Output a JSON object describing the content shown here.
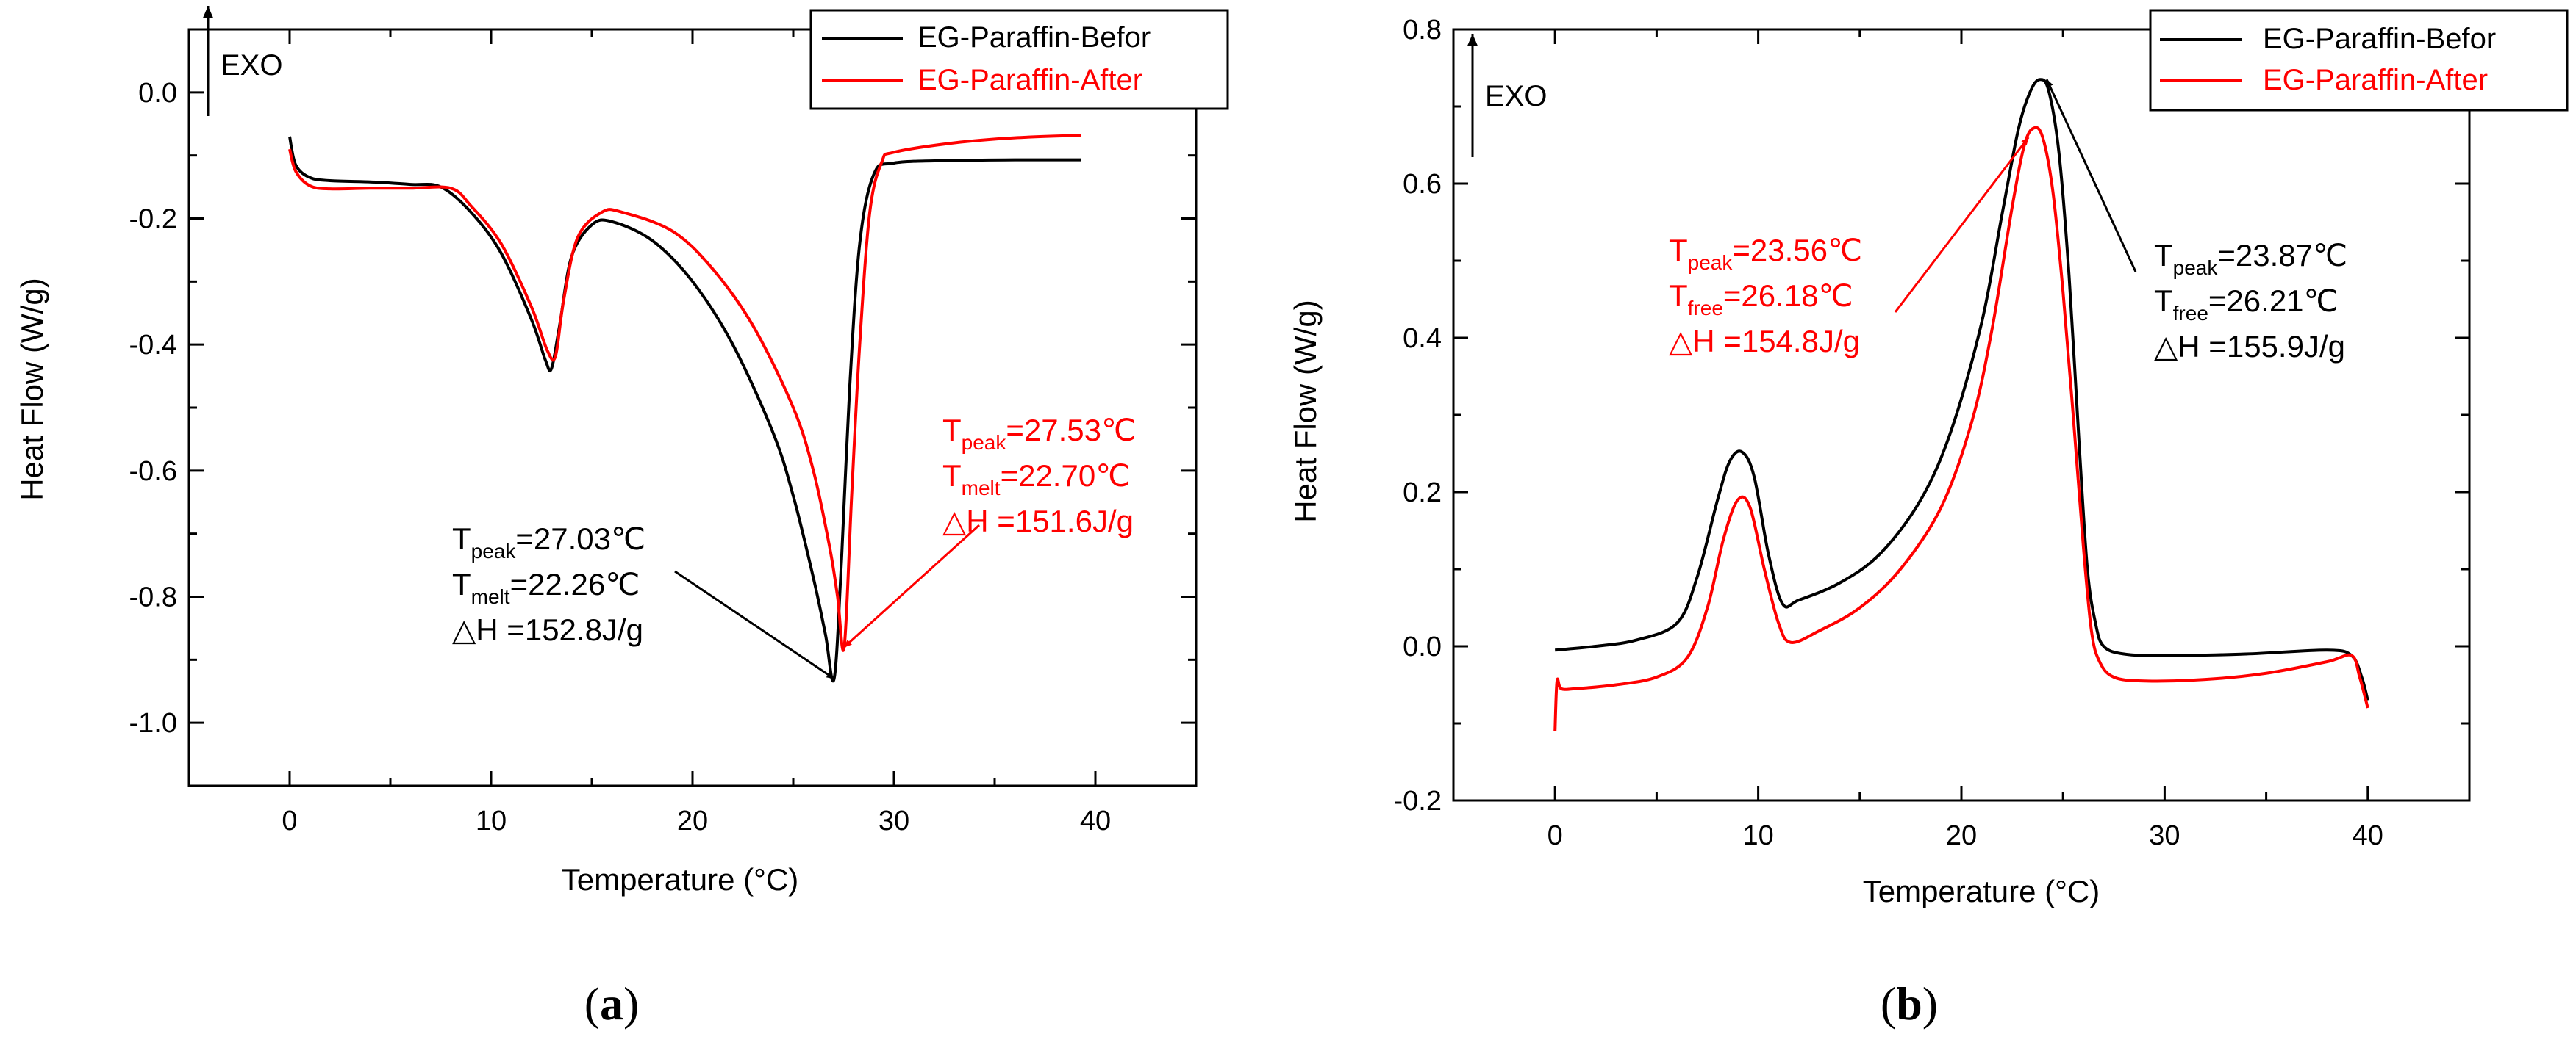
{
  "colors": {
    "before": "#000000",
    "after": "#ff0000",
    "axis": "#000000",
    "background": "#ffffff"
  },
  "chart_data": [
    {
      "type": "line",
      "panel": "a",
      "caption_paren_open": "(",
      "caption_letter": "a",
      "caption_paren_close": ")",
      "xlabel": "Temperature (°C)",
      "ylabel": "Heat Flow (W/g)",
      "xlim": [
        -5,
        45
      ],
      "ylim": [
        -1.1,
        0.1
      ],
      "xticks": [
        0,
        10,
        20,
        30,
        40
      ],
      "xtick_labels": [
        "0",
        "10",
        "20",
        "30",
        "40"
      ],
      "yticks": [
        -1.0,
        -0.8,
        -0.6,
        -0.4,
        -0.2,
        0.0
      ],
      "ytick_labels": [
        "-1.0",
        "-0.8",
        "-0.6",
        "-0.4",
        "-0.2",
        "0.0"
      ],
      "exo_label": "EXO",
      "legend": {
        "placement": "top-right",
        "entries": [
          "EG-Paraffin-Befor",
          "EG-Paraffin-After"
        ]
      },
      "series": [
        {
          "name": "EG-Paraffin-Befor",
          "color": "#000000",
          "x": [
            0,
            0.3,
            1,
            2,
            4,
            6,
            7.5,
            9,
            10.5,
            12,
            12.7,
            13,
            13.4,
            14,
            15,
            16,
            18,
            20,
            22,
            24,
            25,
            26,
            26.6,
            27.03,
            27.4,
            27.8,
            28.3,
            29,
            30,
            33,
            36,
            39.3
          ],
          "values": [
            -0.07,
            -0.115,
            -0.135,
            -0.14,
            -0.142,
            -0.146,
            -0.15,
            -0.19,
            -0.255,
            -0.36,
            -0.425,
            -0.438,
            -0.37,
            -0.26,
            -0.21,
            -0.205,
            -0.235,
            -0.3,
            -0.4,
            -0.54,
            -0.64,
            -0.77,
            -0.86,
            -0.93,
            -0.74,
            -0.47,
            -0.24,
            -0.13,
            -0.112,
            -0.108,
            -0.107,
            -0.107
          ]
        },
        {
          "name": "EG-Paraffin-After",
          "color": "#ff0000",
          "x": [
            0,
            0.3,
            1,
            2,
            4,
            6,
            8,
            9,
            10.5,
            12,
            12.8,
            13.2,
            13.6,
            14.3,
            15.5,
            16.5,
            19,
            21,
            23,
            25,
            26,
            26.8,
            27.2,
            27.53,
            27.9,
            28.3,
            28.8,
            29.4,
            30,
            33,
            36,
            39.3
          ],
          "values": [
            -0.09,
            -0.125,
            -0.148,
            -0.153,
            -0.152,
            -0.152,
            -0.152,
            -0.18,
            -0.24,
            -0.34,
            -0.41,
            -0.418,
            -0.33,
            -0.23,
            -0.19,
            -0.19,
            -0.22,
            -0.28,
            -0.37,
            -0.5,
            -0.6,
            -0.72,
            -0.8,
            -0.88,
            -0.64,
            -0.4,
            -0.19,
            -0.11,
            -0.095,
            -0.08,
            -0.072,
            -0.068
          ]
        }
      ],
      "annotations": [
        {
          "series": "EG-Paraffin-Befor",
          "color": "#000000",
          "target": [
            27.03,
            -0.93
          ],
          "lines": [
            {
              "sym": "T",
              "sub": "peak",
              "val": "=27.03℃"
            },
            {
              "sym": "T",
              "sub": "melt",
              "val": "=22.26℃"
            },
            {
              "sym": "△H",
              "sub": "",
              "val": " =152.8J/g"
            }
          ]
        },
        {
          "series": "EG-Paraffin-After",
          "color": "#ff0000",
          "target": [
            27.53,
            -0.88
          ],
          "lines": [
            {
              "sym": "T",
              "sub": "peak",
              "val": "=27.53℃"
            },
            {
              "sym": "T",
              "sub": "melt",
              "val": "=22.70℃"
            },
            {
              "sym": "△H",
              "sub": "",
              "val": " =151.6J/g"
            }
          ]
        }
      ]
    },
    {
      "type": "line",
      "panel": "b",
      "caption_paren_open": "(",
      "caption_letter": "b",
      "caption_paren_close": ")",
      "xlabel": "Temperature (°C)",
      "ylabel": "Heat Flow (W/g)",
      "xlim": [
        -5,
        45
      ],
      "ylim": [
        -0.2,
        0.8
      ],
      "xticks": [
        0,
        10,
        20,
        30,
        40
      ],
      "xtick_labels": [
        "0",
        "10",
        "20",
        "30",
        "40"
      ],
      "yticks": [
        -0.2,
        0.0,
        0.2,
        0.4,
        0.6,
        0.8
      ],
      "ytick_labels": [
        "-0.2",
        "0.0",
        "0.2",
        "0.4",
        "0.6",
        "0.8"
      ],
      "exo_label": "EXO",
      "legend": {
        "placement": "top-right",
        "entries": [
          "EG-Paraffin-Befor",
          "EG-Paraffin-After"
        ]
      },
      "series": [
        {
          "name": "EG-Paraffin-Befor",
          "color": "#000000",
          "x": [
            0,
            2,
            4,
            6,
            7,
            8,
            8.6,
            9.2,
            9.8,
            10.5,
            11.2,
            12,
            14,
            16,
            18,
            19.5,
            21,
            22,
            22.8,
            23.4,
            23.87,
            24.3,
            24.8,
            25.3,
            25.8,
            26.2,
            26.6,
            27,
            28,
            30,
            34,
            38,
            39.2,
            39.7,
            40
          ],
          "values": [
            -0.005,
            0.0,
            0.008,
            0.03,
            0.09,
            0.19,
            0.24,
            0.252,
            0.22,
            0.12,
            0.055,
            0.06,
            0.082,
            0.12,
            0.19,
            0.28,
            0.42,
            0.56,
            0.67,
            0.72,
            0.735,
            0.72,
            0.64,
            0.48,
            0.26,
            0.1,
            0.03,
            0.0,
            -0.01,
            -0.012,
            -0.01,
            -0.005,
            -0.012,
            -0.04,
            -0.07
          ]
        },
        {
          "name": "EG-Paraffin-After",
          "color": "#ff0000",
          "x": [
            0,
            0.1,
            0.3,
            1,
            3,
            5,
            6.5,
            7.5,
            8.3,
            9,
            9.6,
            10.3,
            11,
            11.6,
            13,
            15,
            17,
            19,
            20.5,
            21.5,
            22.5,
            23.1,
            23.56,
            24,
            24.5,
            25,
            25.5,
            26,
            26.4,
            26.8,
            27.5,
            29,
            32,
            35,
            38,
            39.2,
            39.6,
            40
          ],
          "values": [
            -0.11,
            -0.045,
            -0.055,
            -0.055,
            -0.05,
            -0.04,
            -0.015,
            0.05,
            0.14,
            0.19,
            0.18,
            0.1,
            0.03,
            0.005,
            0.02,
            0.05,
            0.1,
            0.18,
            0.29,
            0.41,
            0.57,
            0.65,
            0.672,
            0.66,
            0.59,
            0.46,
            0.3,
            0.13,
            0.02,
            -0.02,
            -0.04,
            -0.045,
            -0.043,
            -0.035,
            -0.02,
            -0.012,
            -0.04,
            -0.08
          ]
        }
      ],
      "annotations": [
        {
          "series": "EG-Paraffin-After",
          "color": "#ff0000",
          "target": [
            23.3,
            0.66
          ],
          "lines": [
            {
              "sym": "T",
              "sub": "peak",
              "val": "=23.56℃"
            },
            {
              "sym": "T",
              "sub": "free",
              "val": "=26.18℃"
            },
            {
              "sym": "△H",
              "sub": "",
              "val": " =154.8J/g"
            }
          ]
        },
        {
          "series": "EG-Paraffin-Befor",
          "color": "#000000",
          "target": [
            24.2,
            0.735
          ],
          "lines": [
            {
              "sym": "T",
              "sub": "peak",
              "val": "=23.87℃"
            },
            {
              "sym": "T",
              "sub": "free",
              "val": "=26.21℃"
            },
            {
              "sym": "△H",
              "sub": "",
              "val": " =155.9J/g"
            }
          ]
        }
      ]
    }
  ]
}
